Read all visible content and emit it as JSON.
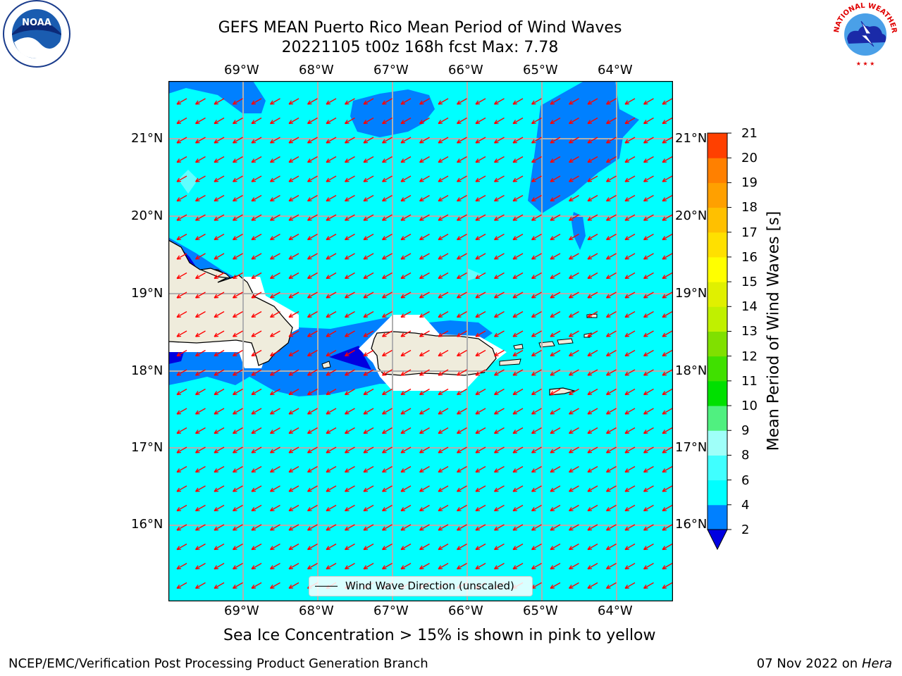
{
  "header": {
    "title_line1": "GEFS MEAN Puerto Rico Mean Period of Wind Waves",
    "title_line2": "20221105 t00z 168h fcst   Max: 7.78"
  },
  "logos": {
    "left": "NOAA",
    "right": "NATIONAL WEATHER SERVICE"
  },
  "map": {
    "lon_labels": [
      "69°W",
      "68°W",
      "67°W",
      "66°W",
      "65°W",
      "64°W"
    ],
    "lat_labels": [
      "21°N",
      "20°N",
      "19°N",
      "18°N",
      "17°N",
      "16°N"
    ],
    "legend_label": "Wind Wave Direction (unscaled)",
    "colors": {
      "ocean": "#00ffff",
      "low": "#0080ff",
      "lowest": "#0000e0",
      "land": "#efecdc",
      "arrow": "#ff0000"
    }
  },
  "colorbar": {
    "label": "Mean Period of Wind Waves [s]",
    "ticks": [
      "2",
      "4",
      "6",
      "8",
      "9",
      "10",
      "11",
      "12",
      "13",
      "14",
      "15",
      "16",
      "17",
      "18",
      "19",
      "20",
      "21"
    ],
    "colors": [
      "#0080ff",
      "#00ffff",
      "#40ffff",
      "#9ffff9",
      "#50f080",
      "#00e000",
      "#40e000",
      "#80e000",
      "#c0f000",
      "#e0f000",
      "#ffff00",
      "#ffe000",
      "#ffc000",
      "#ffa000",
      "#ff8000",
      "#ff4000",
      "#ff0000"
    ],
    "under_color": "#0000e0"
  },
  "caption": "Sea Ice Concentration > 15% is shown in pink to yellow",
  "footer": {
    "left": "NCEP/EMC/Verification Post Processing Product Generation Branch",
    "date": "07 Nov 2022 on",
    "machine": "Hera"
  }
}
